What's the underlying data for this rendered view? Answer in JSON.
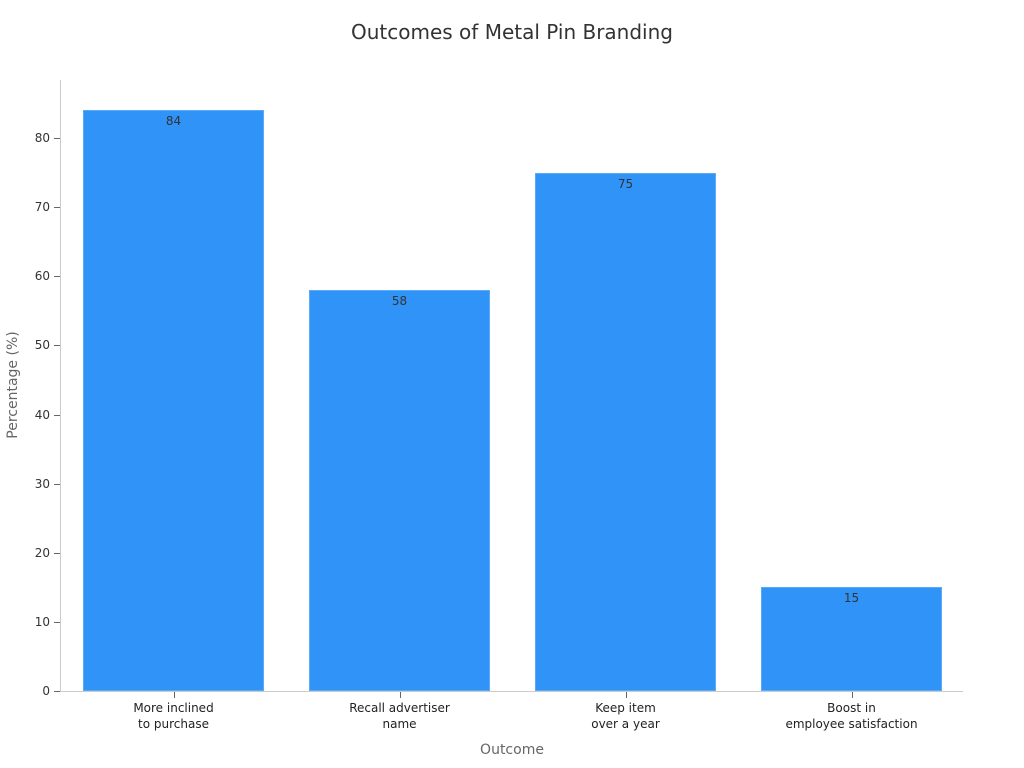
{
  "chart_data": {
    "type": "bar",
    "title": "Outcomes of Metal Pin Branding",
    "xlabel": "Outcome",
    "ylabel": "Percentage (%)",
    "categories": [
      "More inclined\nto purchase",
      "Recall advertiser\nname",
      "Keep item\nover a year",
      "Boost in\nemployee satisfaction"
    ],
    "category_lines": [
      [
        "More inclined",
        "to purchase"
      ],
      [
        "Recall advertiser",
        "name"
      ],
      [
        "Keep item",
        "over a year"
      ],
      [
        "Boost in",
        "employee satisfaction"
      ]
    ],
    "values": [
      84,
      58,
      75,
      15
    ],
    "value_labels": [
      "84",
      "58",
      "75",
      "15"
    ],
    "yticks": [
      "0",
      "10",
      "20",
      "30",
      "40",
      "50",
      "60",
      "70",
      "80"
    ],
    "ylim": [
      0,
      88.4
    ],
    "grid": false,
    "legend": null,
    "bar_color": "#2f93f8"
  }
}
